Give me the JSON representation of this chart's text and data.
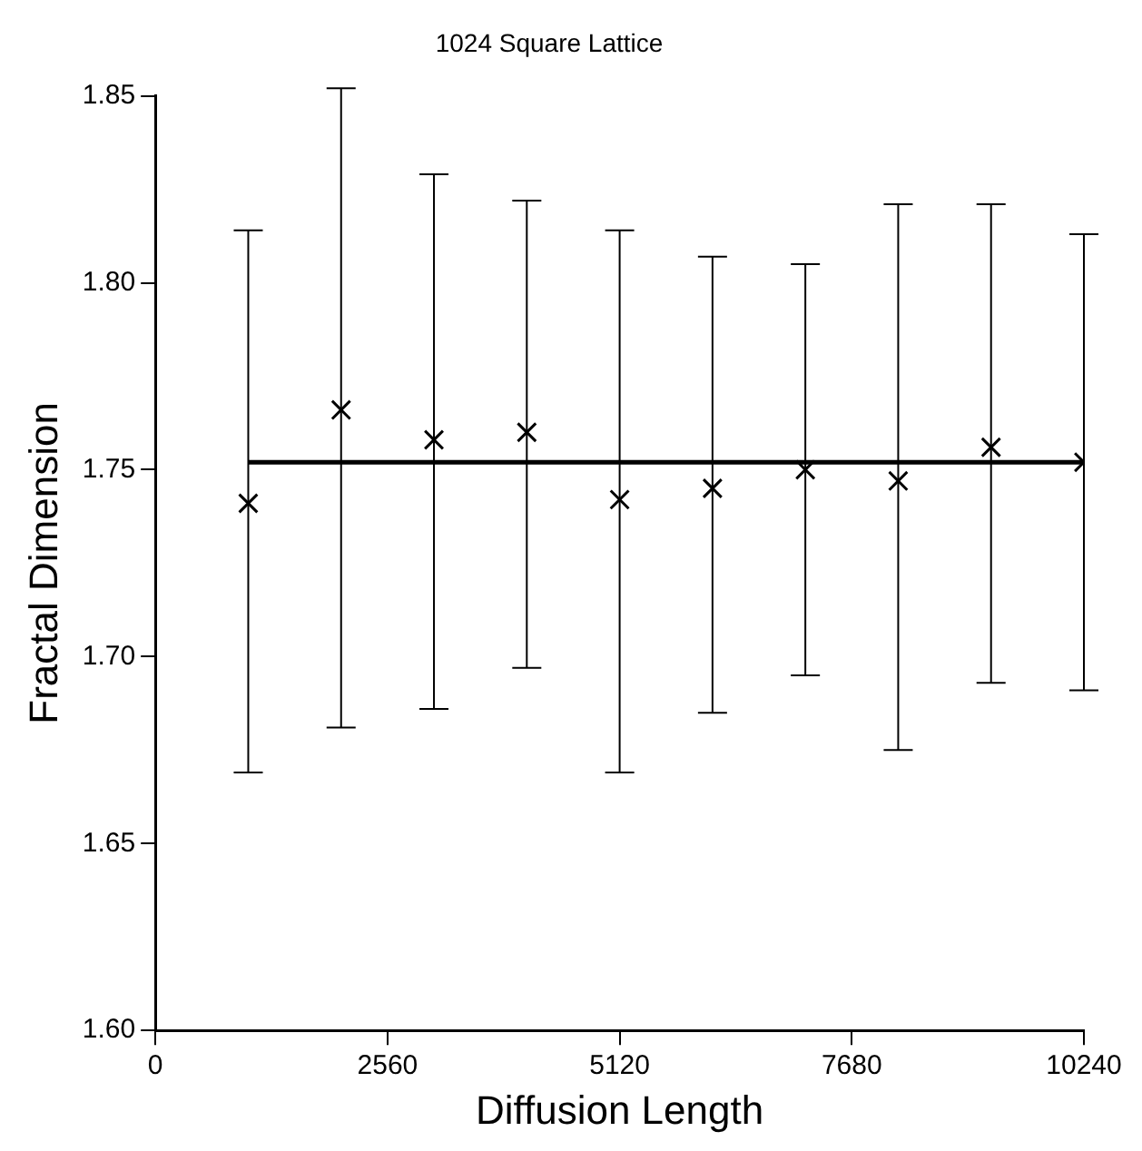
{
  "chart_data": {
    "type": "scatter",
    "title": "1024 Square Lattice",
    "xlabel": "Diffusion Length",
    "ylabel": "Fractal Dimension",
    "xlim": [
      0,
      10240
    ],
    "xticks": [
      0,
      2560,
      5120,
      7680,
      10240
    ],
    "ylim": [
      1.6,
      1.85
    ],
    "yticks": [
      {
        "value": 1.6,
        "label": "1.60"
      },
      1.65,
      {
        "value": 1.7,
        "label": "1.70"
      },
      1.75,
      {
        "value": 1.8,
        "label": "1.80"
      },
      1.85
    ],
    "grid": false,
    "legend": false,
    "series": [
      {
        "marker": "cross",
        "color": "#000000",
        "x": [
          1024,
          2048,
          3072,
          4096,
          5120,
          6144,
          7168,
          8192,
          9216,
          10240
        ],
        "values": [
          1.741,
          1.766,
          1.758,
          1.76,
          1.742,
          1.745,
          1.75,
          1.747,
          1.756,
          1.752
        ],
        "errors": [
          [
            1.669,
            1.814
          ],
          [
            1.681,
            1.852
          ],
          [
            1.686,
            1.829
          ],
          [
            1.697,
            1.822
          ],
          [
            1.669,
            1.814
          ],
          [
            1.685,
            1.807
          ],
          [
            1.695,
            1.805
          ],
          [
            1.675,
            1.821
          ],
          [
            1.693,
            1.821
          ],
          [
            1.691,
            1.813
          ]
        ]
      },
      {
        "type": "line",
        "marker": "none",
        "color": "#000000",
        "x": [
          1024,
          10240
        ],
        "values": [
          1.752,
          1.752
        ]
      }
    ]
  }
}
